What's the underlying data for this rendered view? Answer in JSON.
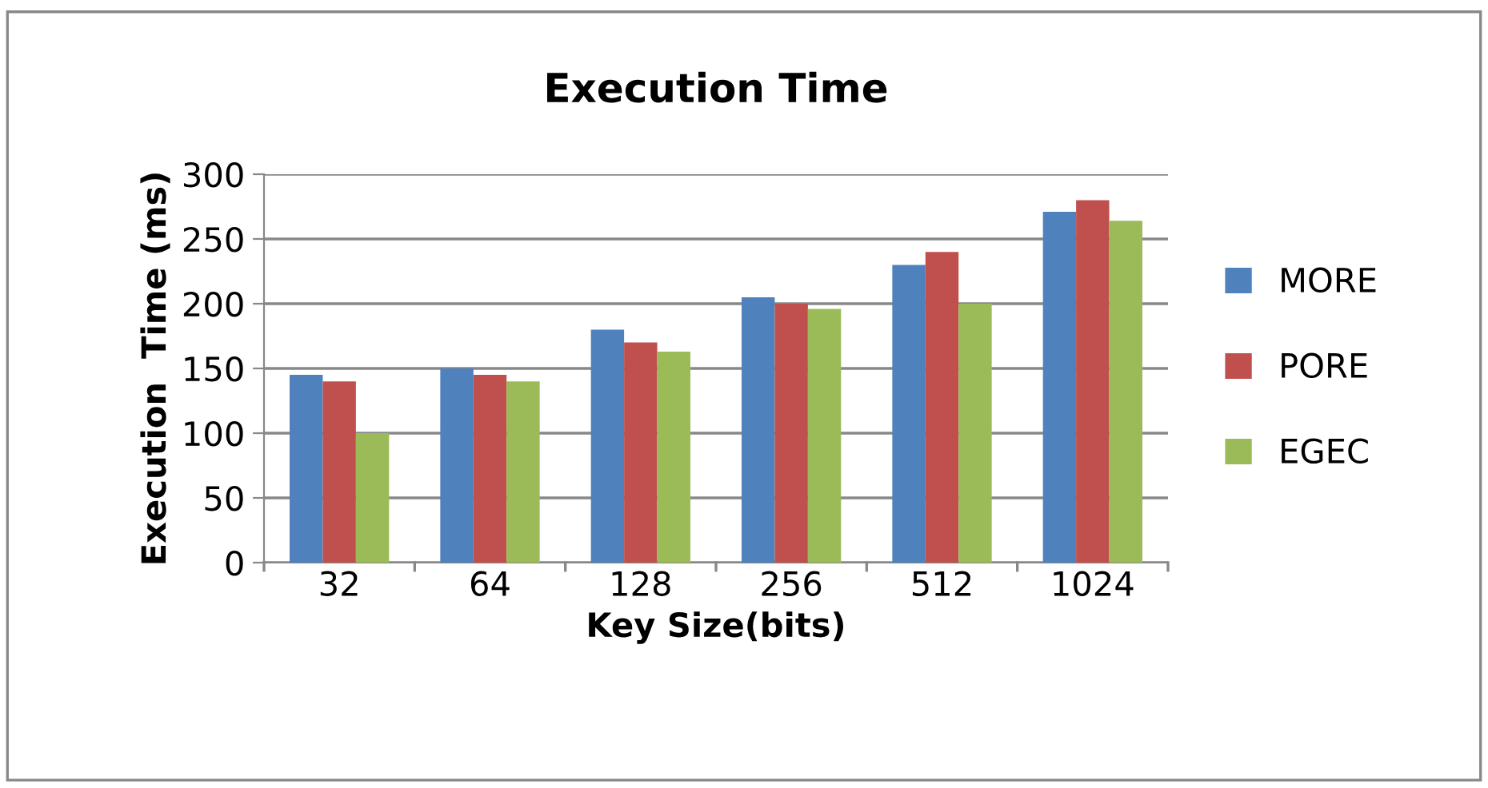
{
  "chart_data": {
    "type": "bar",
    "title": "Execution Time",
    "xlabel": "Key Size(bits)",
    "ylabel": "Execution  Time (ms)",
    "categories": [
      "32",
      "64",
      "128",
      "256",
      "512",
      "1024"
    ],
    "series": [
      {
        "name": "MORE",
        "color": "#4f81bd",
        "values": [
          145,
          150,
          180,
          205,
          230,
          271
        ]
      },
      {
        "name": "PORE",
        "color": "#c0504d",
        "values": [
          140,
          145,
          170,
          200,
          240,
          280
        ]
      },
      {
        "name": "EGEC",
        "color": "#9bbb59",
        "values": [
          100,
          140,
          163,
          196,
          200,
          264
        ]
      }
    ],
    "ylim": [
      0,
      300
    ],
    "yticks": [
      0,
      50,
      100,
      150,
      200,
      250,
      300
    ],
    "grid": "y",
    "legend": "right"
  }
}
